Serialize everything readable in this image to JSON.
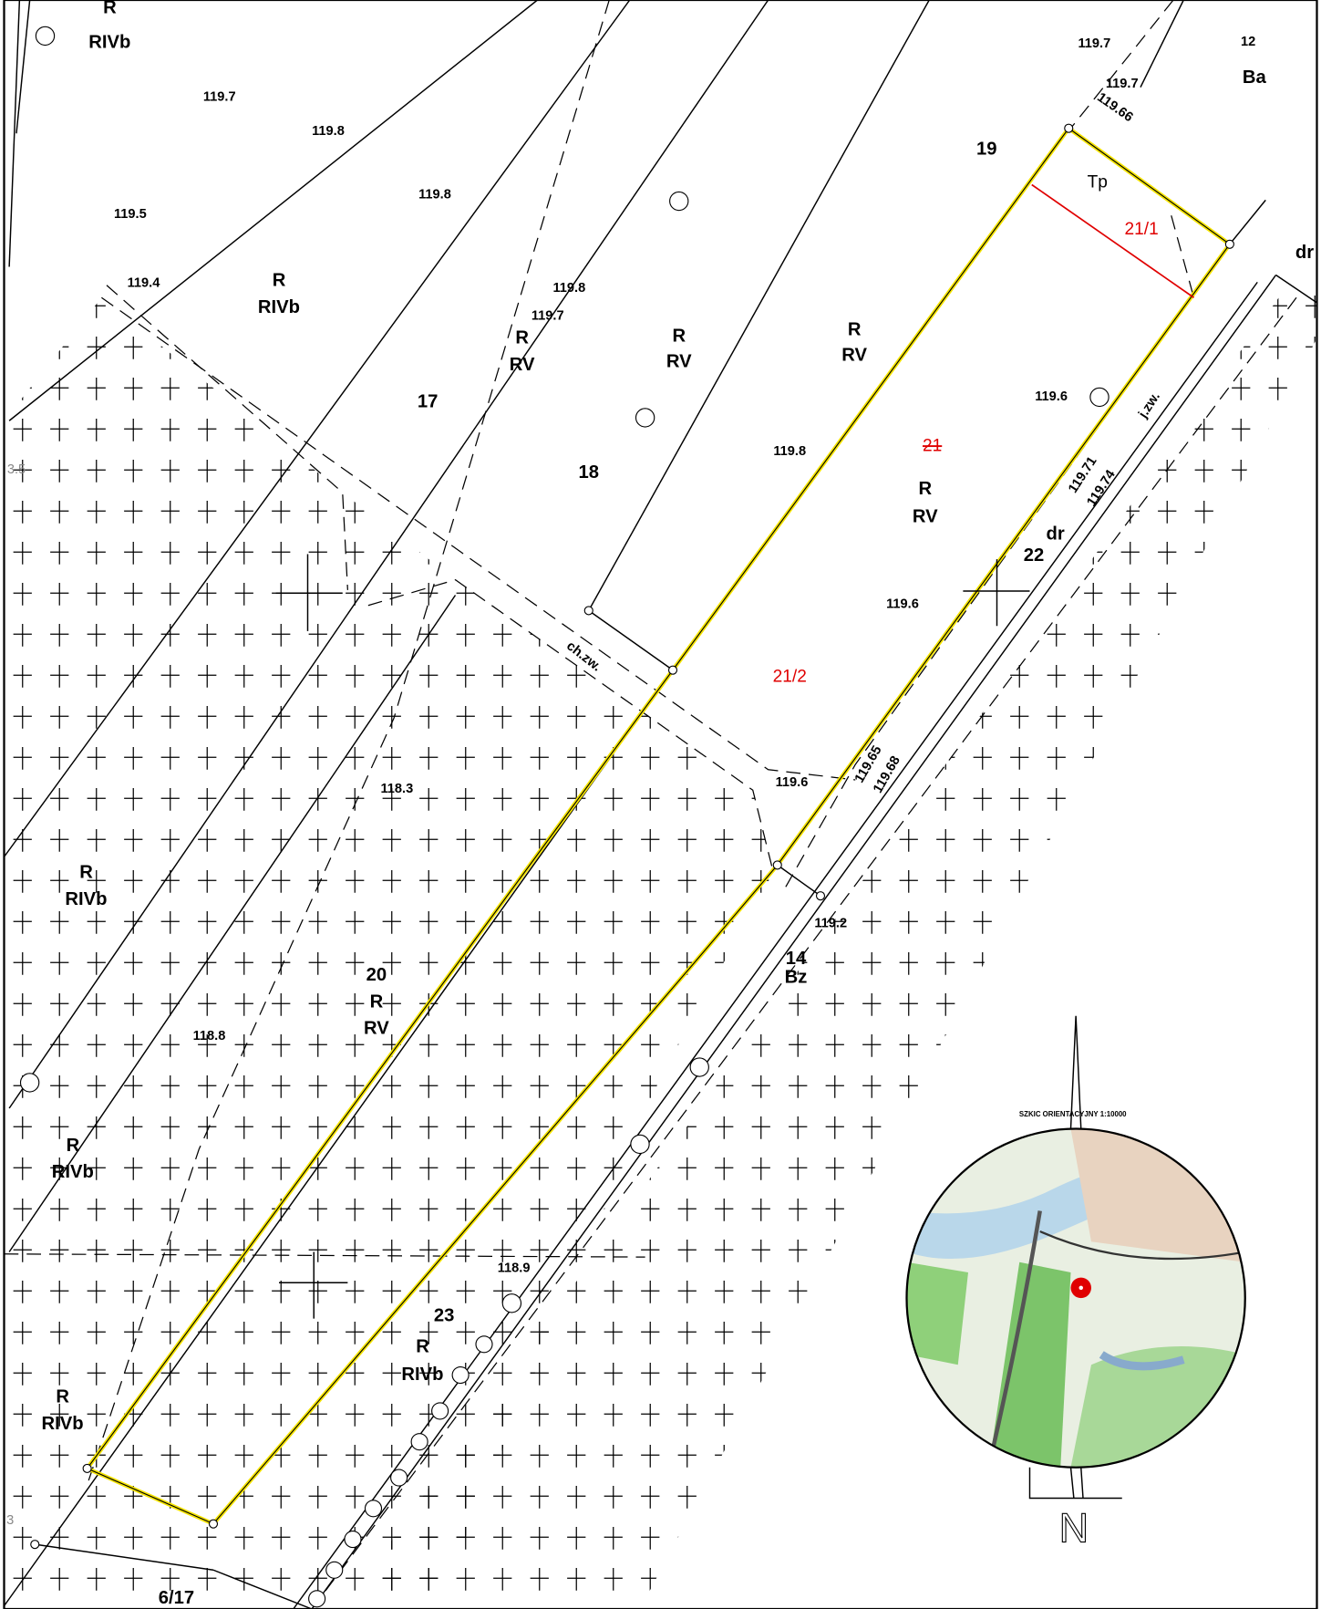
{
  "labels": [
    "R",
    "RIVb",
    "119.7",
    "119.8",
    "119.8",
    "119.5",
    "119.4",
    "R",
    "RIVb",
    "119.8",
    "119.7",
    "R",
    "RV",
    "R",
    "RV",
    "R",
    "RV",
    "17",
    "18",
    "19",
    "119.7",
    "12",
    "119.7",
    "119.66",
    "Ba",
    "Tp",
    "21/1",
    "dr",
    "119.6",
    "j.zw.",
    "119.8",
    "21",
    "R",
    "RV",
    "119.71",
    "119.74",
    "dr",
    "22",
    "119.6",
    "21/2",
    "ch.zw.",
    "119.6",
    "119.65",
    "119.68",
    "118.3",
    "119.2",
    "14",
    "Bz",
    "R",
    "RIVb",
    "20",
    "R",
    "RV",
    "118.8",
    "R",
    "RIVb",
    "118.9",
    "23",
    "R",
    "RIVb",
    "R",
    "RIVb",
    "6/17",
    "3.5",
    "3",
    "SZKIC ORIENTACYJNY 1:10000",
    "N"
  ]
}
